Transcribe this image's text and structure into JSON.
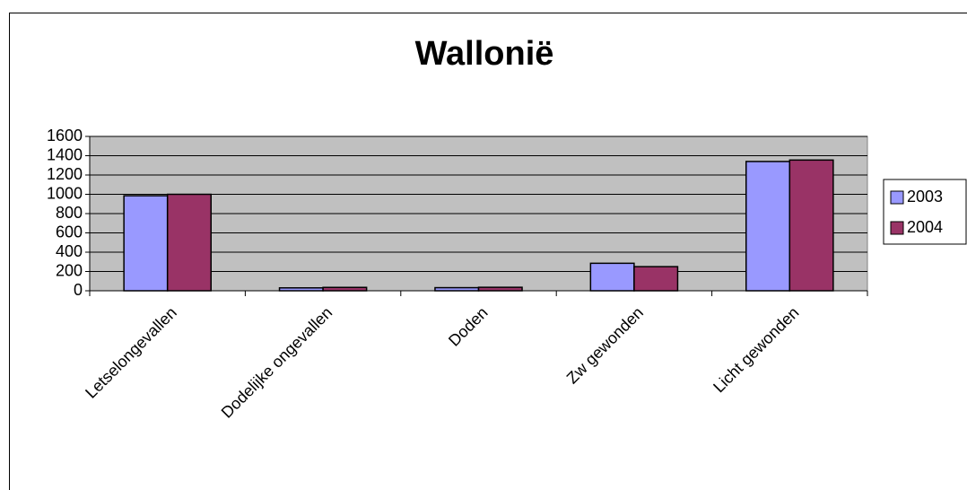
{
  "chart_data": {
    "type": "bar",
    "title": "Wallonië",
    "categories": [
      "Letselongevallen",
      "Dodelijke ongevallen",
      "Doden",
      "Zw gewonden",
      "Licht gewonden"
    ],
    "series": [
      {
        "name": "2003",
        "color": "#9999ff",
        "values": [
          985,
          30,
          32,
          285,
          1340
        ]
      },
      {
        "name": "2004",
        "color": "#993366",
        "values": [
          1000,
          35,
          36,
          250,
          1355
        ]
      }
    ],
    "ylim": [
      0,
      1600
    ],
    "yticks": [
      0,
      200,
      400,
      600,
      800,
      1000,
      1200,
      1400,
      1600
    ],
    "grid": true,
    "legend": "right"
  }
}
